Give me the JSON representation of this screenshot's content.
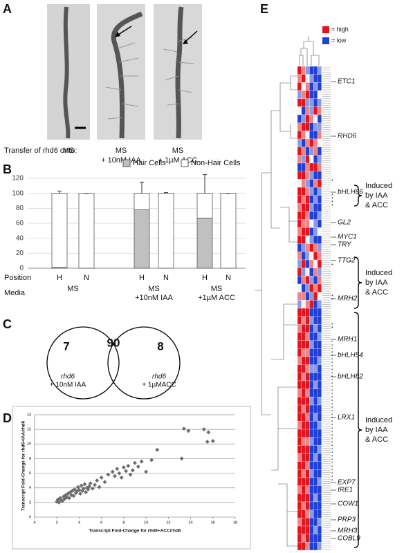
{
  "panel_labels": [
    "A",
    "B",
    "C",
    "D",
    "E"
  ],
  "panel_a": {
    "transfer_label": "Transfer of rhd6 onto:",
    "conditions": [
      [
        "MS"
      ],
      [
        "MS",
        "+ 10nM IAA"
      ],
      [
        "MS",
        "+ 1µM ACC"
      ]
    ]
  },
  "chart_data": [
    {
      "type": "bar",
      "stacked": true,
      "categories": [
        "H",
        "N",
        "H",
        "N",
        "H",
        "N"
      ],
      "row_labels": [
        "Position",
        "Media"
      ],
      "groups": [
        [
          "MS"
        ],
        [
          "MS",
          "+10nM IAA"
        ],
        [
          "MS",
          "+1µM ACC"
        ]
      ],
      "series": [
        {
          "name": "Hair Cells",
          "color": "#c0c0c0",
          "values": [
            1,
            0,
            78,
            0,
            67,
            0
          ],
          "errors": [
            1,
            0,
            15,
            0,
            27,
            0
          ]
        },
        {
          "name": "Non-Hair Cells",
          "color": "#ffffff",
          "values": [
            99,
            100,
            22,
            100,
            33,
            100
          ],
          "errors": [
            3,
            0,
            15,
            1,
            25,
            0
          ]
        }
      ],
      "ylim": [
        0,
        120
      ],
      "yticks": [
        0,
        20,
        40,
        60,
        80,
        100,
        120
      ],
      "grid": true,
      "legend": "top"
    },
    {
      "type": "scatter",
      "xlabel": "Transcript Fold-Change for rhd6+ACC/rhd6",
      "ylabel": "Transcript Fold-Change for rhd6+IAA/rhd6",
      "color": "#6d6d6d",
      "x": [
        2.0,
        2.1,
        2.2,
        2.3,
        2.4,
        2.5,
        2.6,
        2.7,
        2.8,
        2.9,
        3.0,
        3.1,
        3.2,
        3.3,
        3.4,
        3.5,
        3.6,
        3.7,
        3.8,
        3.9,
        4.0,
        4.1,
        4.2,
        4.3,
        4.4,
        4.5,
        4.6,
        4.7,
        4.8,
        4.9,
        5.0,
        5.2,
        5.4,
        5.6,
        5.8,
        6.0,
        6.3,
        6.6,
        7.0,
        7.2,
        7.4,
        7.6,
        7.8,
        8.0,
        8.2,
        8.4,
        8.6,
        8.8,
        9.0,
        9.3,
        9.6,
        10.0,
        10.5,
        11.0,
        13.2,
        13.4,
        13.8,
        15.2,
        15.5,
        15.6,
        16.0
      ],
      "values": [
        2.1,
        2.4,
        2.0,
        2.6,
        2.3,
        2.2,
        2.8,
        2.5,
        3.0,
        2.7,
        3.2,
        2.6,
        3.4,
        3.0,
        3.6,
        2.9,
        3.8,
        3.3,
        3.5,
        4.1,
        3.7,
        3.2,
        4.3,
        3.6,
        3.9,
        4.5,
        3.4,
        4.0,
        3.8,
        4.2,
        4.6,
        3.9,
        4.4,
        5.0,
        4.1,
        5.4,
        4.8,
        5.8,
        6.2,
        5.6,
        6.6,
        6.0,
        5.4,
        6.8,
        6.3,
        7.0,
        5.8,
        6.4,
        7.4,
        6.9,
        7.6,
        6.2,
        7.8,
        9.2,
        8.0,
        12.1,
        11.8,
        12.0,
        10.3,
        11.6,
        10.4
      ],
      "xlim": [
        0,
        18
      ],
      "xticks": [
        0,
        2,
        4,
        6,
        8,
        10,
        12,
        14,
        16,
        18
      ],
      "ylim": [
        0,
        14
      ],
      "yticks": [
        0,
        2,
        4,
        6,
        8,
        10,
        12,
        14
      ],
      "grid": true
    }
  ],
  "venn": {
    "left_count": 7,
    "overlap_count": 90,
    "right_count": 8,
    "left_label": [
      "rhd6",
      "+ 10nM IAA"
    ],
    "right_label": [
      "rhd6",
      "+ 1µMACC"
    ]
  },
  "heatmap": {
    "legend": [
      {
        "label": "= high",
        "color": "#e3141c"
      },
      {
        "label": "= low",
        "color": "#1f3fd6"
      }
    ],
    "vlim": [
      -2,
      2
    ],
    "rows": [
      [
        2,
        1,
        -1,
        -2,
        -2,
        -1
      ],
      [
        1,
        2,
        0,
        -1,
        -2,
        -2
      ],
      [
        2,
        0,
        1,
        -2,
        -1,
        -2
      ],
      [
        -1,
        1,
        2,
        -2,
        -2,
        0
      ],
      [
        2,
        2,
        -1,
        -1,
        -2,
        -1
      ],
      [
        0,
        -2,
        1,
        -1,
        2,
        1
      ],
      [
        -2,
        -1,
        2,
        1,
        0,
        -2
      ],
      [
        1,
        2,
        2,
        -2,
        -1,
        -1
      ],
      [
        2,
        1,
        0,
        -2,
        -2,
        1
      ],
      [
        -1,
        -2,
        1,
        2,
        1,
        0
      ],
      [
        2,
        1,
        -2,
        -1,
        1,
        -2
      ],
      [
        1,
        -1,
        2,
        0,
        -2,
        -1
      ],
      [
        -2,
        -2,
        1,
        2,
        2,
        1
      ],
      [
        2,
        2,
        1,
        -1,
        -2,
        -2
      ],
      [
        0,
        1,
        -1,
        -2,
        1,
        2
      ],
      [
        2,
        2,
        1,
        -1,
        -2,
        -1
      ],
      [
        2,
        1,
        2,
        -2,
        -1,
        -2
      ],
      [
        1,
        2,
        2,
        -1,
        -2,
        -2
      ],
      [
        2,
        2,
        1,
        -2,
        -2,
        -1
      ],
      [
        2,
        1,
        1,
        0,
        -1,
        -2
      ],
      [
        1,
        2,
        2,
        -2,
        -1,
        0
      ],
      [
        2,
        2,
        0,
        -1,
        -2,
        -2
      ],
      [
        -2,
        -1,
        1,
        2,
        1,
        -1
      ],
      [
        1,
        -2,
        -1,
        0,
        2,
        1
      ],
      [
        -1,
        2,
        -2,
        1,
        0,
        2
      ],
      [
        2,
        -1,
        0,
        -2,
        1,
        -1
      ],
      [
        -2,
        1,
        2,
        -1,
        -2,
        1
      ],
      [
        0,
        -2,
        -1,
        2,
        1,
        2
      ],
      [
        1,
        1,
        -2,
        -1,
        2,
        0
      ],
      [
        -1,
        0,
        1,
        2,
        -2,
        -1
      ],
      [
        2,
        2,
        2,
        -2,
        -2,
        -2
      ],
      [
        2,
        1,
        2,
        -1,
        -2,
        -2
      ],
      [
        1,
        2,
        2,
        -2,
        -1,
        -2
      ],
      [
        2,
        2,
        1,
        -2,
        -2,
        -1
      ],
      [
        2,
        2,
        2,
        -1,
        -2,
        -2
      ],
      [
        2,
        1,
        1,
        -2,
        -2,
        -2
      ],
      [
        1,
        2,
        2,
        -2,
        -2,
        -1
      ],
      [
        2,
        2,
        1,
        -1,
        -1,
        -2
      ],
      [
        2,
        1,
        2,
        -2,
        -2,
        -2
      ],
      [
        2,
        2,
        2,
        -2,
        -1,
        -2
      ],
      [
        1,
        2,
        1,
        -2,
        -2,
        -2
      ],
      [
        2,
        2,
        2,
        -1,
        -2,
        -1
      ],
      [
        2,
        1,
        2,
        -2,
        -2,
        -2
      ],
      [
        2,
        2,
        1,
        -2,
        -1,
        -2
      ],
      [
        1,
        2,
        2,
        -2,
        -2,
        -1
      ],
      [
        2,
        2,
        2,
        -2,
        -2,
        -2
      ],
      [
        2,
        1,
        1,
        -1,
        -2,
        -2
      ],
      [
        2,
        2,
        2,
        -2,
        -2,
        -1
      ],
      [
        1,
        2,
        2,
        -2,
        -1,
        -2
      ],
      [
        2,
        2,
        1,
        -2,
        -2,
        -2
      ],
      [
        2,
        1,
        2,
        -1,
        -2,
        -2
      ],
      [
        2,
        2,
        2,
        -2,
        -2,
        -1
      ],
      [
        1,
        2,
        1,
        -2,
        -2,
        -2
      ],
      [
        2,
        2,
        2,
        -2,
        -1,
        -2
      ],
      [
        2,
        1,
        2,
        -2,
        -2,
        -2
      ],
      [
        2,
        2,
        1,
        -1,
        -2,
        -2
      ],
      [
        1,
        2,
        2,
        -2,
        -2,
        -1
      ],
      [
        2,
        2,
        2,
        -2,
        -1,
        -2
      ],
      [
        2,
        1,
        2,
        -2,
        -2,
        -2
      ],
      [
        2,
        2,
        1,
        -2,
        -2,
        -1
      ]
    ],
    "genes": [
      "ETC1",
      "RHD6",
      "bHLH66",
      "GL2",
      "MYC1",
      "TRY",
      "TTG2",
      "MRH2",
      "MRH1",
      "bHLH54",
      "bHLH82",
      "LRX1",
      "EXP7",
      "IRE1",
      "COW1",
      "PRP3",
      "MRH3",
      "COBL9"
    ],
    "brace_labels": [
      [
        "Induced",
        "by IAA",
        "& ACC"
      ],
      [
        "Induced",
        "by IAA",
        "& ACC"
      ],
      [
        "Induced",
        "by IAA",
        "& ACC"
      ]
    ],
    "asterisk": "*"
  }
}
